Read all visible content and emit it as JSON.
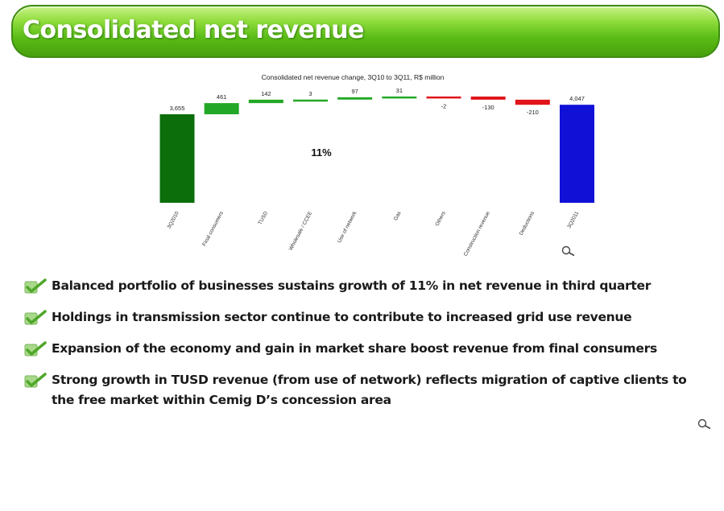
{
  "header": {
    "title": "Consolidated net revenue"
  },
  "chart_data": {
    "type": "bar",
    "subtype": "waterfall",
    "title": "Consolidated net revenue change, 3Q10 to 3Q11, R$ million",
    "annotation": "11%",
    "categories": [
      "3Q2010",
      "Final consumers",
      "TUSD",
      "Wholesale / CCEE",
      "Use of network",
      "Gas",
      "Others",
      "Construction revenue",
      "Deductions",
      "3Q2011"
    ],
    "values": [
      3655,
      461,
      142,
      3,
      97,
      31,
      -2,
      -130,
      -210,
      4047
    ],
    "value_labels": [
      "3,655",
      "461",
      "142",
      "3",
      "97",
      "31",
      "-2",
      "-130",
      "-210",
      "4,047"
    ],
    "kinds": [
      "total",
      "increase",
      "increase",
      "increase",
      "increase",
      "increase",
      "decrease",
      "decrease",
      "decrease",
      "total"
    ],
    "colors": {
      "start_total": "#0b6e0b",
      "end_total": "#1010d6",
      "increase": "#22a826",
      "decrease": "#e0141a"
    },
    "ylim": [
      0,
      4200
    ],
    "grid": false,
    "legend": "none"
  },
  "bullets": [
    {
      "text": "Balanced portfolio of businesses sustains growth of 11% in net revenue in third quarter"
    },
    {
      "text": "Holdings in transmission sector continue to contribute to increased grid use revenue"
    },
    {
      "text": "Expansion of the economy and gain in market share boost revenue from final consumers"
    },
    {
      "text": "Strong growth in TUSD revenue (from use of network) reflects migration of captive clients to the free market within Cemig D’s concession area"
    }
  ],
  "icons": {
    "bullet": "check-icon",
    "zoom": "magnifier-icon"
  }
}
